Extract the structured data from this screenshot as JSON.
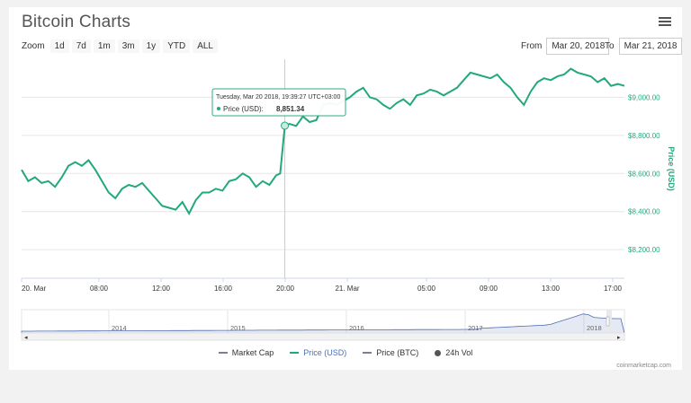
{
  "header": {
    "title": "Bitcoin Charts"
  },
  "zoom": {
    "label": "Zoom",
    "buttons": [
      "1d",
      "7d",
      "1m",
      "3m",
      "1y",
      "YTD",
      "ALL"
    ]
  },
  "range": {
    "from_label": "From",
    "from_value": "Mar 20, 2018",
    "to_label": "To",
    "to_value": "Mar 21, 2018"
  },
  "tooltip": {
    "header": "Tuesday, Mar 20 2018, 19:39:27 UTC+03:00",
    "series_label": "Price (USD):",
    "value": "8,851.34"
  },
  "navigator": {
    "years": [
      "2014",
      "2015",
      "2016",
      "2017",
      "2018"
    ]
  },
  "legend": [
    {
      "label": "Market Cap",
      "color": "#7a7f99",
      "kind": "line"
    },
    {
      "label": "Price (USD)",
      "color": "#22a97a",
      "kind": "line"
    },
    {
      "label": "Price (BTC)",
      "color": "#7a7f99",
      "kind": "line"
    },
    {
      "label": "24h Vol",
      "color": "#555555",
      "kind": "dot"
    }
  ],
  "credit": "coinmarketcap.com",
  "colors": {
    "price": "#22a97a",
    "navigator": "#4f6bb0",
    "axis": "#666666"
  },
  "chart_data": {
    "type": "line",
    "title": "",
    "ylabel": "Price (USD)",
    "x_ticks": [
      "20. Mar",
      "08:00",
      "12:00",
      "16:00",
      "20:00",
      "21. Mar",
      "05:00",
      "09:00",
      "13:00",
      "17:00"
    ],
    "y_ticks": [
      "$8,200.00",
      "$8,400.00",
      "$8,600.00",
      "$8,800.00",
      "$9,000.00"
    ],
    "ylim": [
      8050,
      9200
    ],
    "series": [
      {
        "name": "Price (USD)",
        "x_hours": [
          0,
          0.5,
          1,
          1.5,
          2,
          2.5,
          3,
          3.5,
          4,
          4.5,
          5,
          5.5,
          6,
          6.5,
          7,
          7.5,
          8,
          8.5,
          9,
          9.5,
          10,
          10.5,
          11,
          11.5,
          12,
          12.5,
          13,
          13.5,
          14,
          14.5,
          15,
          15.5,
          16,
          16.5,
          17,
          17.5,
          18,
          18.5,
          19,
          19.3,
          19.65,
          20,
          20.5,
          21,
          21.5,
          22,
          22.5,
          23,
          23.5,
          24,
          24.5,
          25,
          25.5,
          26,
          26.5,
          27,
          27.5,
          28,
          28.5,
          29,
          29.5,
          30,
          30.5,
          31,
          31.5,
          32,
          32.5,
          33,
          33.5,
          34,
          34.5,
          35,
          35.5,
          36,
          36.5,
          37,
          37.5,
          38,
          38.5,
          39,
          39.5,
          40,
          40.5,
          41,
          41.5,
          42,
          42.5,
          43,
          43.5,
          44,
          44.5,
          45
        ],
        "values": [
          8620,
          8560,
          8580,
          8550,
          8560,
          8530,
          8580,
          8640,
          8660,
          8640,
          8670,
          8620,
          8560,
          8500,
          8470,
          8520,
          8540,
          8530,
          8550,
          8510,
          8470,
          8430,
          8420,
          8410,
          8450,
          8390,
          8460,
          8500,
          8500,
          8520,
          8510,
          8560,
          8570,
          8600,
          8580,
          8530,
          8560,
          8540,
          8590,
          8600,
          8851,
          8860,
          8850,
          8900,
          8870,
          8880,
          8960,
          8970,
          8960,
          8980,
          9000,
          9030,
          9050,
          9000,
          8990,
          8960,
          8940,
          8970,
          8990,
          8960,
          9010,
          9020,
          9040,
          9030,
          9010,
          9030,
          9050,
          9090,
          9130,
          9120,
          9110,
          9100,
          9120,
          9080,
          9050,
          9000,
          8960,
          9030,
          9080,
          9100,
          9090,
          9110,
          9120,
          9150,
          9130,
          9120,
          9110,
          9080,
          9100,
          9060,
          9070,
          9060
        ]
      }
    ]
  }
}
